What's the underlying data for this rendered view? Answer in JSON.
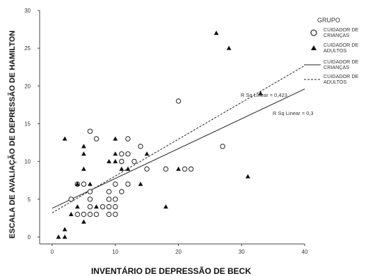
{
  "chart_data": {
    "type": "scatter",
    "xlabel": "INVENTÁRIO DE DEPRESSÃO DE BECK",
    "ylabel": "ESCALA DE AVALIAÇÃO DE DEPRESSÃO DE HAMILTON",
    "xlim": [
      0,
      40
    ],
    "ylim": [
      0,
      30
    ],
    "x_ticks": [
      "0",
      "10",
      "20",
      "30",
      "40"
    ],
    "y_ticks": [
      "0",
      "5",
      "10",
      "15",
      "20",
      "25",
      "30"
    ],
    "legend": {
      "title": "GRUPO",
      "placement": "top-right",
      "entries": [
        {
          "symbol": "circle",
          "label_lines": [
            "CUIDADOR DE",
            "CRIANÇAS"
          ]
        },
        {
          "symbol": "triangle",
          "label_lines": [
            "CUIDADOR DE",
            "ADULTOS"
          ]
        },
        {
          "symbol": "solid-line",
          "label_lines": [
            "CUIDADOR DE",
            "CRIANÇAS"
          ]
        },
        {
          "symbol": "dashed-line",
          "label_lines": [
            "CUIDADOR DE",
            "ADULTOS"
          ]
        }
      ]
    },
    "annotations": [
      {
        "text": "R Sq Linear = 0,423"
      },
      {
        "text": "R Sq Linear = 0,3"
      }
    ],
    "series": [
      {
        "marker": "circle",
        "fit_line": "solid",
        "points": [
          [
            3,
            5
          ],
          [
            4,
            7
          ],
          [
            5,
            7
          ],
          [
            4,
            3
          ],
          [
            5,
            3
          ],
          [
            6,
            3
          ],
          [
            7,
            3
          ],
          [
            6,
            4
          ],
          [
            6,
            5
          ],
          [
            6,
            6
          ],
          [
            6,
            14
          ],
          [
            7,
            13
          ],
          [
            8,
            4
          ],
          [
            9,
            4
          ],
          [
            9,
            5
          ],
          [
            9,
            3
          ],
          [
            9,
            6
          ],
          [
            10,
            3
          ],
          [
            10,
            4
          ],
          [
            10,
            5
          ],
          [
            10,
            7
          ],
          [
            11,
            6
          ],
          [
            11,
            10
          ],
          [
            11,
            11
          ],
          [
            12,
            11
          ],
          [
            12,
            13
          ],
          [
            12,
            7
          ],
          [
            13,
            10
          ],
          [
            14,
            12
          ],
          [
            15,
            9
          ],
          [
            18,
            9
          ],
          [
            20,
            18
          ],
          [
            21,
            9
          ],
          [
            22,
            9
          ],
          [
            27,
            12
          ]
        ],
        "fit": [
          [
            0,
            3.8
          ],
          [
            40,
            19.6
          ]
        ]
      },
      {
        "marker": "triangle",
        "fit_line": "dashed",
        "points": [
          [
            1,
            0
          ],
          [
            2,
            0
          ],
          [
            2,
            1
          ],
          [
            2,
            13
          ],
          [
            3,
            3
          ],
          [
            4,
            4
          ],
          [
            4,
            7
          ],
          [
            5,
            2
          ],
          [
            5,
            9
          ],
          [
            5,
            12
          ],
          [
            5,
            11
          ],
          [
            6,
            7
          ],
          [
            7,
            4
          ],
          [
            9,
            10
          ],
          [
            10,
            10
          ],
          [
            10,
            13
          ],
          [
            10,
            11
          ],
          [
            11,
            9
          ],
          [
            12,
            9
          ],
          [
            14,
            7
          ],
          [
            15,
            11
          ],
          [
            18,
            4
          ],
          [
            20,
            9
          ],
          [
            26,
            27
          ],
          [
            28,
            25
          ],
          [
            31,
            8
          ],
          [
            33,
            19
          ]
        ],
        "fit": [
          [
            0,
            3.2
          ],
          [
            40,
            22.7
          ]
        ]
      }
    ]
  }
}
